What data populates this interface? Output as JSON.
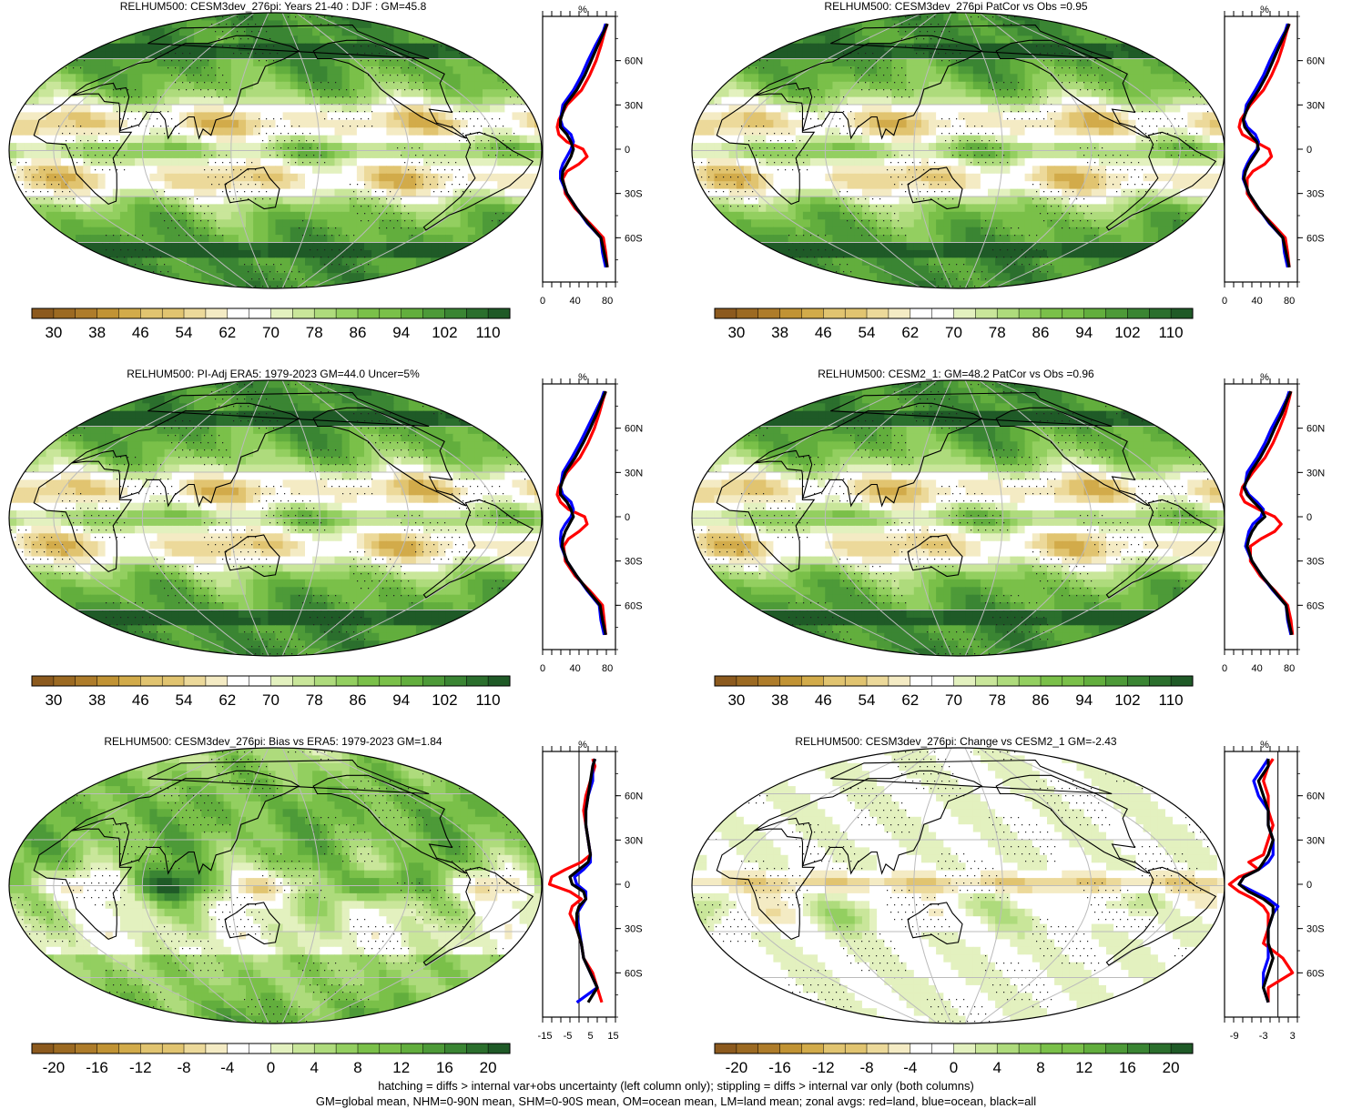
{
  "captions": {
    "line1": "hatching = diffs > internal var+obs uncertainty (left column only); stippling = diffs > internal var only (both columns)",
    "line2": "GM=global mean, NHM=0-90N mean, SHM=0-90S mean, OM=ocean mean, LM=land mean; zonal avgs: red=land, blue=ocean, black=all"
  },
  "chart_data": [
    {
      "type": "heatmap",
      "title": "RELHUM500: CESM3dev_276pi: Years 21-40 : DJF : GM=45.8",
      "colorbar_labels": [
        "30",
        "38",
        "46",
        "54",
        "62",
        "70",
        "78",
        "86",
        "94",
        "102",
        "110"
      ],
      "colorbar": "brown-white-green",
      "zonal": {
        "unit": "%",
        "xticks": [
          "0",
          "40",
          "80"
        ],
        "xlim": [
          0,
          90
        ],
        "ylabels": [
          "60N",
          "30N",
          "0",
          "30S",
          "60S"
        ],
        "lat": [
          85,
          80,
          70,
          60,
          50,
          40,
          30,
          20,
          15,
          10,
          5,
          0,
          -5,
          -10,
          -15,
          -20,
          -30,
          -40,
          -50,
          -60,
          -70,
          -80
        ],
        "land": [
          80,
          77,
          72,
          66,
          58,
          48,
          30,
          20,
          18,
          20,
          30,
          50,
          55,
          45,
          30,
          25,
          28,
          40,
          58,
          75,
          78,
          80
        ],
        "ocean": [
          78,
          75,
          65,
          56,
          48,
          38,
          25,
          22,
          25,
          35,
          38,
          35,
          30,
          25,
          22,
          22,
          30,
          42,
          55,
          72,
          74,
          78
        ],
        "all": [
          80,
          76,
          68,
          60,
          52,
          42,
          28,
          22,
          22,
          30,
          35,
          38,
          35,
          30,
          25,
          24,
          30,
          42,
          56,
          72,
          76,
          80
        ]
      }
    },
    {
      "type": "heatmap",
      "title": "RELHUM500: CESM3dev_276pi PatCor vs Obs =0.95",
      "colorbar_labels": [
        "30",
        "38",
        "46",
        "54",
        "62",
        "70",
        "78",
        "86",
        "94",
        "102",
        "110"
      ],
      "colorbar": "brown-white-green",
      "zonal": {
        "unit": "%",
        "xticks": [
          "0",
          "40",
          "80"
        ],
        "xlim": [
          0,
          90
        ],
        "ylabels": [
          "60N",
          "30N",
          "0",
          "30S",
          "60S"
        ],
        "lat": [
          85,
          80,
          70,
          60,
          50,
          40,
          30,
          20,
          15,
          10,
          5,
          0,
          -5,
          -10,
          -15,
          -20,
          -30,
          -40,
          -50,
          -60,
          -70,
          -80
        ],
        "land": [
          80,
          77,
          72,
          66,
          58,
          48,
          32,
          20,
          18,
          22,
          38,
          55,
          58,
          50,
          35,
          28,
          28,
          40,
          58,
          75,
          78,
          80
        ],
        "ocean": [
          78,
          75,
          65,
          56,
          48,
          38,
          27,
          24,
          28,
          38,
          42,
          40,
          33,
          28,
          24,
          23,
          30,
          42,
          55,
          72,
          74,
          78
        ],
        "all": [
          80,
          76,
          68,
          60,
          52,
          42,
          30,
          23,
          25,
          32,
          40,
          42,
          36,
          30,
          26,
          24,
          30,
          42,
          56,
          72,
          76,
          80
        ]
      }
    },
    {
      "type": "heatmap",
      "title": "RELHUM500: PI-Adj ERA5: 1979-2023 GM=44.0 Uncer=5%",
      "colorbar_labels": [
        "30",
        "38",
        "46",
        "54",
        "62",
        "70",
        "78",
        "86",
        "94",
        "102",
        "110"
      ],
      "colorbar": "brown-white-green",
      "zonal": {
        "unit": "%",
        "xticks": [
          "0",
          "40",
          "80"
        ],
        "xlim": [
          0,
          90
        ],
        "ylabels": [
          "60N",
          "30N",
          "0",
          "30S",
          "60S"
        ],
        "lat": [
          85,
          80,
          70,
          60,
          50,
          40,
          30,
          20,
          15,
          10,
          5,
          0,
          -5,
          -10,
          -15,
          -20,
          -30,
          -40,
          -50,
          -60,
          -70,
          -80
        ],
        "land": [
          78,
          75,
          70,
          64,
          56,
          46,
          30,
          20,
          18,
          22,
          32,
          52,
          55,
          45,
          32,
          26,
          28,
          40,
          58,
          74,
          76,
          78
        ],
        "ocean": [
          76,
          73,
          64,
          55,
          46,
          36,
          25,
          22,
          25,
          35,
          38,
          35,
          28,
          23,
          22,
          23,
          30,
          42,
          55,
          70,
          72,
          76
        ],
        "all": [
          78,
          74,
          67,
          59,
          50,
          40,
          28,
          22,
          22,
          30,
          35,
          38,
          33,
          28,
          25,
          24,
          30,
          42,
          56,
          71,
          74,
          78
        ]
      }
    },
    {
      "type": "heatmap",
      "title": "RELHUM500: CESM2_1: GM=48.2 PatCor vs Obs =0.96",
      "colorbar_labels": [
        "30",
        "38",
        "46",
        "54",
        "62",
        "70",
        "78",
        "86",
        "94",
        "102",
        "110"
      ],
      "colorbar": "brown-white-green",
      "zonal": {
        "unit": "%",
        "xticks": [
          "0",
          "40",
          "80"
        ],
        "xlim": [
          0,
          90
        ],
        "ylabels": [
          "60N",
          "30N",
          "0",
          "30S",
          "60S"
        ],
        "lat": [
          85,
          80,
          70,
          60,
          50,
          40,
          30,
          20,
          15,
          10,
          5,
          0,
          -5,
          -10,
          -15,
          -20,
          -30,
          -40,
          -50,
          -60,
          -70,
          -80
        ],
        "land": [
          82,
          80,
          75,
          68,
          60,
          50,
          35,
          22,
          20,
          25,
          42,
          62,
          70,
          62,
          45,
          32,
          32,
          44,
          62,
          78,
          82,
          84
        ],
        "ocean": [
          80,
          77,
          68,
          58,
          50,
          40,
          28,
          25,
          30,
          40,
          48,
          45,
          35,
          30,
          28,
          26,
          34,
          46,
          60,
          76,
          78,
          82
        ],
        "all": [
          82,
          78,
          71,
          62,
          54,
          44,
          32,
          24,
          28,
          36,
          45,
          50,
          40,
          34,
          30,
          28,
          34,
          46,
          61,
          76,
          79,
          83
        ]
      }
    },
    {
      "type": "heatmap",
      "title": "RELHUM500: CESM3dev_276pi: Bias vs ERA5: 1979-2023 GM=1.84",
      "colorbar_labels": [
        "-20",
        "-16",
        "-12",
        "-8",
        "-4",
        "0",
        "4",
        "8",
        "12",
        "16",
        "20"
      ],
      "colorbar": "brown-white-green-diff",
      "zonal": {
        "unit": "%",
        "xticks": [
          "-15",
          "-5",
          "5",
          "15"
        ],
        "xlim": [
          -16,
          16
        ],
        "ylabels": [
          "60N",
          "30N",
          "0",
          "30S",
          "60S"
        ],
        "lat": [
          85,
          80,
          70,
          60,
          50,
          40,
          30,
          20,
          15,
          10,
          5,
          0,
          -5,
          -10,
          -15,
          -20,
          -30,
          -40,
          -50,
          -60,
          -70,
          -80
        ],
        "land": [
          6,
          7,
          5,
          3,
          2,
          3,
          4,
          5,
          1,
          -6,
          -12,
          -13,
          -4,
          1,
          -3,
          -4,
          -1,
          1,
          2,
          6,
          8,
          10
        ],
        "ocean": [
          7,
          6,
          6,
          4,
          3,
          3,
          4,
          5,
          5,
          2,
          -2,
          -1,
          3,
          3,
          1,
          -1,
          0,
          1,
          2,
          5,
          8,
          -1
        ],
        "all": [
          7,
          6,
          5,
          4,
          3,
          3,
          4,
          5,
          4,
          0,
          -4,
          -3,
          2,
          3,
          0,
          -1,
          -1,
          1,
          2,
          5,
          8,
          4
        ]
      }
    },
    {
      "type": "heatmap",
      "title": "RELHUM500: CESM3dev_276pi: Change vs CESM2_1 GM=-2.43",
      "colorbar_labels": [
        "-20",
        "-16",
        "-12",
        "-8",
        "-4",
        "0",
        "4",
        "8",
        "12",
        "16",
        "20"
      ],
      "colorbar": "brown-white-green-diff",
      "zonal": {
        "unit": "%",
        "xticks": [
          "-9",
          "-3",
          "3"
        ],
        "xlim": [
          -11,
          4
        ],
        "ylabels": [
          "60N",
          "30N",
          "0",
          "30S",
          "60S"
        ],
        "lat": [
          85,
          80,
          70,
          60,
          50,
          40,
          30,
          20,
          15,
          10,
          5,
          0,
          -5,
          -10,
          -15,
          -20,
          -30,
          -40,
          -50,
          -60,
          -70,
          -80
        ],
        "land": [
          -1,
          -2,
          -3,
          -2,
          -2,
          -1,
          -2,
          -3,
          -6,
          -4,
          -8,
          -10,
          -8,
          -5,
          -3,
          -2,
          -2,
          -3,
          1,
          3,
          -2,
          -2
        ],
        "ocean": [
          -2,
          -3,
          -5,
          -4,
          -2,
          -2,
          -1,
          -1,
          -2,
          -4,
          -7,
          -8,
          -5,
          -2,
          0,
          -1,
          -2,
          -2,
          -2,
          -3,
          -3,
          -2
        ],
        "all": [
          -2,
          -2,
          -4,
          -3,
          -2,
          -2,
          -1,
          -2,
          -3,
          -4,
          -7,
          -8,
          -6,
          -3,
          -1,
          -1,
          -2,
          -2,
          -1,
          -2,
          -3,
          -2
        ]
      }
    }
  ]
}
